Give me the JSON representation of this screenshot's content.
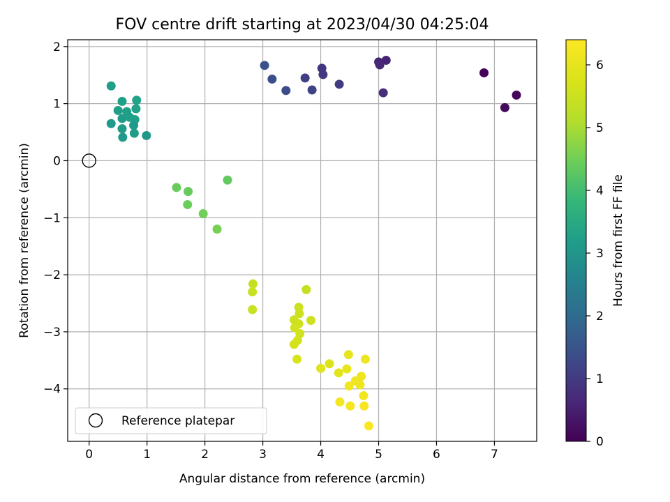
{
  "chart_data": {
    "type": "scatter",
    "title": "FOV centre drift starting at 2023/04/30 04:25:04",
    "xlabel": "Angular distance from reference (arcmin)",
    "ylabel": "Rotation from reference (arcmin)",
    "xlim": [
      -0.37,
      7.73
    ],
    "ylim": [
      -4.92,
      2.12
    ],
    "xticks": [
      0,
      1,
      2,
      3,
      4,
      5,
      6,
      7
    ],
    "yticks": [
      -4,
      -3,
      -2,
      -1,
      0,
      1,
      2
    ],
    "xtick_labels": [
      "0",
      "1",
      "2",
      "3",
      "4",
      "5",
      "6",
      "7"
    ],
    "ytick_labels": [
      "−4",
      "−3",
      "−2",
      "−1",
      "0",
      "1",
      "2"
    ],
    "grid": true,
    "colormap": "viridis",
    "colorbar": {
      "label": "Hours from first FF file",
      "range": [
        0,
        6.4
      ],
      "ticks": [
        0,
        1,
        2,
        3,
        4,
        5,
        6
      ],
      "tick_labels": [
        "0",
        "1",
        "2",
        "3",
        "4",
        "5",
        "6"
      ]
    },
    "reference": {
      "x": 0,
      "y": 0,
      "legend_label": "Reference platepar",
      "legend_location": "lower left"
    },
    "points": [
      {
        "x": 6.82,
        "y": 1.54,
        "hours": 0.05
      },
      {
        "x": 7.38,
        "y": 1.15,
        "hours": 0.1
      },
      {
        "x": 7.18,
        "y": 0.93,
        "hours": 0.15
      },
      {
        "x": 5.0,
        "y": 1.73,
        "hours": 0.6
      },
      {
        "x": 5.13,
        "y": 1.76,
        "hours": 0.55
      },
      {
        "x": 5.02,
        "y": 1.68,
        "hours": 0.65
      },
      {
        "x": 5.08,
        "y": 1.19,
        "hours": 0.75
      },
      {
        "x": 4.32,
        "y": 1.34,
        "hours": 1.0
      },
      {
        "x": 4.02,
        "y": 1.62,
        "hours": 0.9
      },
      {
        "x": 4.04,
        "y": 1.51,
        "hours": 0.95
      },
      {
        "x": 3.73,
        "y": 1.45,
        "hours": 1.1
      },
      {
        "x": 3.85,
        "y": 1.24,
        "hours": 1.15
      },
      {
        "x": 3.4,
        "y": 1.23,
        "hours": 1.35
      },
      {
        "x": 3.16,
        "y": 1.43,
        "hours": 1.4
      },
      {
        "x": 3.03,
        "y": 1.67,
        "hours": 1.45
      },
      {
        "x": 0.38,
        "y": 1.31,
        "hours": 3.2
      },
      {
        "x": 0.57,
        "y": 1.04,
        "hours": 3.25
      },
      {
        "x": 0.82,
        "y": 1.06,
        "hours": 3.3
      },
      {
        "x": 0.5,
        "y": 0.88,
        "hours": 3.2
      },
      {
        "x": 0.65,
        "y": 0.86,
        "hours": 3.25
      },
      {
        "x": 0.81,
        "y": 0.91,
        "hours": 3.3
      },
      {
        "x": 0.57,
        "y": 0.74,
        "hours": 3.15
      },
      {
        "x": 0.7,
        "y": 0.76,
        "hours": 3.2
      },
      {
        "x": 0.79,
        "y": 0.72,
        "hours": 3.25
      },
      {
        "x": 0.38,
        "y": 0.65,
        "hours": 3.1
      },
      {
        "x": 0.57,
        "y": 0.56,
        "hours": 3.15
      },
      {
        "x": 0.77,
        "y": 0.62,
        "hours": 3.1
      },
      {
        "x": 0.78,
        "y": 0.48,
        "hours": 3.15
      },
      {
        "x": 0.58,
        "y": 0.41,
        "hours": 3.1
      },
      {
        "x": 0.99,
        "y": 0.44,
        "hours": 3.05
      },
      {
        "x": 1.51,
        "y": -0.47,
        "hours": 4.4
      },
      {
        "x": 1.71,
        "y": -0.54,
        "hours": 4.4
      },
      {
        "x": 2.39,
        "y": -0.34,
        "hours": 4.35
      },
      {
        "x": 1.7,
        "y": -0.77,
        "hours": 4.45
      },
      {
        "x": 1.97,
        "y": -0.93,
        "hours": 4.5
      },
      {
        "x": 2.21,
        "y": -1.2,
        "hours": 4.55
      },
      {
        "x": 2.83,
        "y": -2.16,
        "hours": 5.4
      },
      {
        "x": 2.82,
        "y": -2.3,
        "hours": 5.45
      },
      {
        "x": 3.75,
        "y": -2.26,
        "hours": 5.4
      },
      {
        "x": 2.82,
        "y": -2.61,
        "hours": 5.45
      },
      {
        "x": 3.62,
        "y": -2.57,
        "hours": 5.5
      },
      {
        "x": 3.63,
        "y": -2.68,
        "hours": 5.5
      },
      {
        "x": 3.54,
        "y": -2.79,
        "hours": 5.55
      },
      {
        "x": 3.62,
        "y": -2.86,
        "hours": 5.55
      },
      {
        "x": 3.83,
        "y": -2.8,
        "hours": 5.55
      },
      {
        "x": 3.55,
        "y": -2.93,
        "hours": 5.6
      },
      {
        "x": 3.64,
        "y": -3.03,
        "hours": 5.6
      },
      {
        "x": 3.6,
        "y": -3.15,
        "hours": 5.65
      },
      {
        "x": 3.54,
        "y": -3.22,
        "hours": 5.65
      },
      {
        "x": 3.59,
        "y": -3.48,
        "hours": 5.7
      },
      {
        "x": 4.15,
        "y": -3.56,
        "hours": 5.8
      },
      {
        "x": 4.0,
        "y": -3.64,
        "hours": 5.85
      },
      {
        "x": 4.31,
        "y": -3.72,
        "hours": 5.9
      },
      {
        "x": 4.48,
        "y": -3.4,
        "hours": 6.0
      },
      {
        "x": 4.77,
        "y": -3.48,
        "hours": 6.1
      },
      {
        "x": 4.45,
        "y": -3.65,
        "hours": 6.0
      },
      {
        "x": 4.7,
        "y": -3.78,
        "hours": 6.1
      },
      {
        "x": 4.6,
        "y": -3.86,
        "hours": 6.15
      },
      {
        "x": 4.68,
        "y": -3.93,
        "hours": 6.15
      },
      {
        "x": 4.49,
        "y": -3.95,
        "hours": 6.2
      },
      {
        "x": 4.74,
        "y": -4.12,
        "hours": 6.2
      },
      {
        "x": 4.33,
        "y": -4.23,
        "hours": 6.25
      },
      {
        "x": 4.51,
        "y": -4.3,
        "hours": 6.25
      },
      {
        "x": 4.75,
        "y": -4.3,
        "hours": 6.3
      },
      {
        "x": 4.83,
        "y": -4.65,
        "hours": 6.35
      }
    ]
  }
}
